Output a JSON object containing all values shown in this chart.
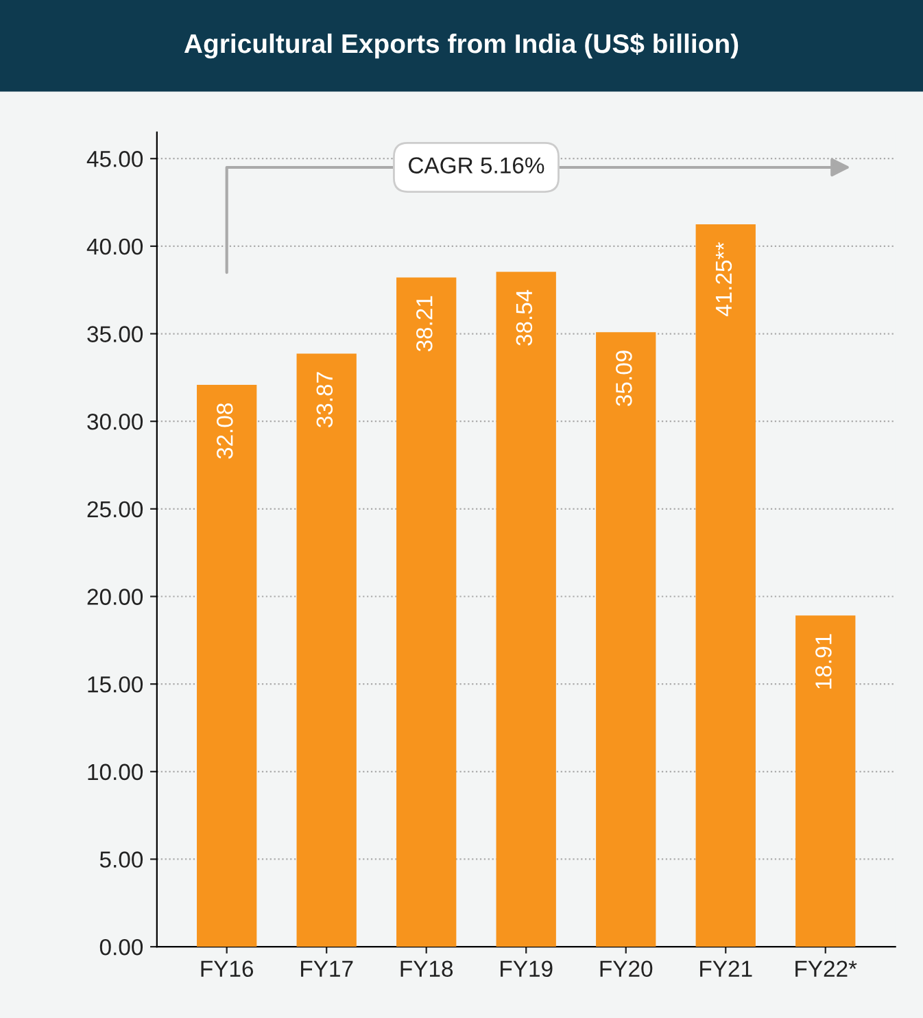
{
  "chart_data": {
    "type": "bar",
    "title": "Agricultural Exports from India (US$ billion)",
    "categories": [
      "FY16",
      "FY17",
      "FY18",
      "FY19",
      "FY20",
      "FY21",
      "FY22*"
    ],
    "values": [
      32.08,
      33.87,
      38.21,
      38.54,
      35.09,
      41.25,
      18.91
    ],
    "value_labels": [
      "32.08",
      "33.87",
      "38.21",
      "38.54",
      "35.09",
      "41.25**",
      "18.91"
    ],
    "color": "#f7941d",
    "ylim": [
      0,
      46.5
    ],
    "yticks": [
      {
        "value": 0,
        "label": "0.00"
      },
      {
        "value": 5,
        "label": "5.00"
      },
      {
        "value": 10,
        "label": "10.00"
      },
      {
        "value": 15,
        "label": "15.00"
      },
      {
        "value": 20,
        "label": "20.00"
      },
      {
        "value": 25,
        "label": "25.00"
      },
      {
        "value": 30,
        "label": "30.00"
      },
      {
        "value": 35,
        "label": "35.00"
      },
      {
        "value": 40,
        "label": "40.00"
      },
      {
        "value": 45,
        "label": "45.00"
      }
    ],
    "grid": "y",
    "annotations": [
      "CAGR 5.16%"
    ]
  }
}
